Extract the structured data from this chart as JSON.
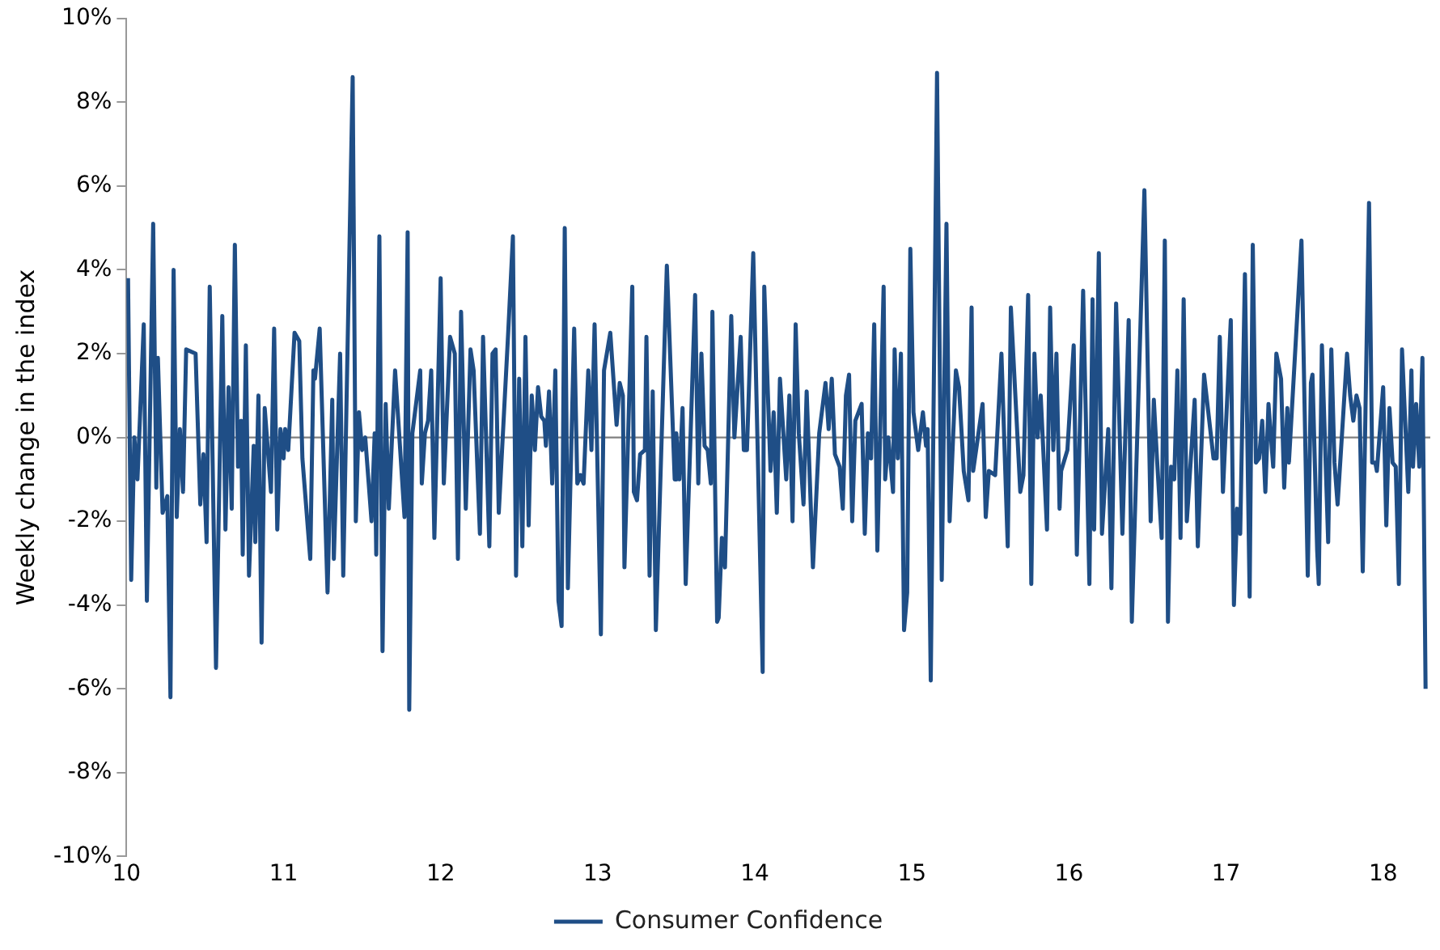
{
  "chart_data": {
    "type": "line",
    "ylabel": "Weekly change in the index",
    "legend": "bottom",
    "grid": false,
    "marker": "none",
    "line_style": "solid",
    "xlim": [
      10,
      18.3
    ],
    "xticks": [
      10,
      11,
      12,
      13,
      14,
      15,
      16,
      17,
      18
    ],
    "ylim": [
      -10,
      10
    ],
    "yticks": [
      {
        "value": -10,
        "label": "-10%"
      },
      {
        "value": -8,
        "label": "-8%"
      },
      {
        "value": -6,
        "label": "-6%"
      },
      {
        "value": -4,
        "label": "-4%"
      },
      {
        "value": -2,
        "label": "-2%"
      },
      {
        "value": 0,
        "label": "0%"
      },
      {
        "value": 2,
        "label": "2%"
      },
      {
        "value": 4,
        "label": "4%"
      },
      {
        "value": 6,
        "label": "6%"
      },
      {
        "value": 8,
        "label": "8%"
      },
      {
        "value": 10,
        "label": "10%"
      }
    ],
    "ref_lines": [
      {
        "axis": "y",
        "value": 0,
        "color": "#808080"
      }
    ],
    "series": [
      {
        "name": "Consumer Confidence",
        "color": "#1f4e86",
        "x": [
          10.01,
          10.03,
          10.05,
          10.07,
          10.11,
          10.13,
          10.17,
          10.19,
          10.2,
          10.23,
          10.26,
          10.28,
          10.3,
          10.32,
          10.34,
          10.36,
          10.38,
          10.44,
          10.47,
          10.49,
          10.51,
          10.53,
          10.57,
          10.61,
          10.63,
          10.65,
          10.67,
          10.69,
          10.71,
          10.73,
          10.74,
          10.76,
          10.78,
          10.81,
          10.82,
          10.84,
          10.86,
          10.88,
          10.92,
          10.94,
          10.96,
          10.98,
          11.0,
          11.01,
          11.03,
          11.07,
          11.1,
          11.12,
          11.17,
          11.19,
          11.2,
          11.23,
          11.28,
          11.31,
          11.32,
          11.36,
          11.38,
          11.44,
          11.46,
          11.48,
          11.5,
          11.52,
          11.56,
          11.58,
          11.59,
          11.61,
          11.63,
          11.65,
          11.67,
          11.71,
          11.77,
          11.79,
          11.8,
          11.82,
          11.87,
          11.88,
          11.9,
          11.92,
          11.94,
          11.96,
          12.0,
          12.02,
          12.06,
          12.09,
          12.11,
          12.13,
          12.16,
          12.19,
          12.21,
          12.25,
          12.27,
          12.31,
          12.33,
          12.35,
          12.37,
          12.43,
          12.46,
          12.48,
          12.5,
          12.52,
          12.54,
          12.56,
          12.58,
          12.6,
          12.62,
          12.64,
          12.66,
          12.67,
          12.69,
          12.71,
          12.73,
          12.75,
          12.77,
          12.79,
          12.81,
          12.85,
          12.87,
          12.89,
          12.91,
          12.94,
          12.96,
          12.98,
          13.02,
          13.04,
          13.08,
          13.12,
          13.14,
          13.16,
          13.17,
          13.22,
          13.23,
          13.25,
          13.27,
          13.3,
          13.31,
          13.33,
          13.35,
          13.37,
          13.44,
          13.49,
          13.5,
          13.52,
          13.54,
          13.56,
          13.62,
          13.64,
          13.66,
          13.68,
          13.7,
          13.72,
          13.73,
          13.76,
          13.77,
          13.79,
          13.81,
          13.85,
          13.87,
          13.91,
          13.93,
          13.95,
          13.99,
          14.05,
          14.06,
          14.1,
          14.12,
          14.14,
          14.16,
          14.2,
          14.22,
          14.24,
          14.26,
          14.28,
          14.31,
          14.33,
          14.37,
          14.41,
          14.45,
          14.47,
          14.49,
          14.51,
          14.54,
          14.56,
          14.58,
          14.6,
          14.62,
          14.64,
          14.68,
          14.7,
          14.72,
          14.74,
          14.76,
          14.78,
          14.82,
          14.83,
          14.85,
          14.88,
          14.89,
          14.91,
          14.93,
          14.95,
          14.97,
          14.99,
          15.01,
          15.04,
          15.07,
          15.09,
          15.1,
          15.12,
          15.16,
          15.19,
          15.22,
          15.24,
          15.28,
          15.3,
          15.33,
          15.36,
          15.38,
          15.39,
          15.45,
          15.47,
          15.49,
          15.53,
          15.57,
          15.61,
          15.63,
          15.69,
          15.71,
          15.74,
          15.76,
          15.78,
          15.8,
          15.82,
          15.86,
          15.88,
          15.9,
          15.92,
          15.94,
          15.95,
          15.99,
          16.03,
          16.05,
          16.09,
          16.13,
          16.15,
          16.16,
          16.19,
          16.21,
          16.25,
          16.27,
          16.3,
          16.34,
          16.38,
          16.4,
          16.48,
          16.52,
          16.54,
          16.56,
          16.59,
          16.61,
          16.63,
          16.65,
          16.67,
          16.69,
          16.71,
          16.73,
          16.75,
          16.8,
          16.82,
          16.86,
          16.92,
          16.94,
          16.96,
          16.98,
          17.03,
          17.05,
          17.07,
          17.09,
          17.12,
          17.15,
          17.17,
          17.19,
          17.21,
          17.23,
          17.25,
          17.27,
          17.3,
          17.32,
          17.35,
          17.37,
          17.39,
          17.4,
          17.48,
          17.52,
          17.54,
          17.55,
          17.58,
          17.59,
          17.61,
          17.65,
          17.67,
          17.69,
          17.71,
          17.77,
          17.79,
          17.81,
          17.83,
          17.85,
          17.87,
          17.91,
          17.93,
          17.95,
          17.96,
          18.0,
          18.02,
          18.04,
          18.06,
          18.08,
          18.1,
          18.12,
          18.16,
          18.18,
          18.19,
          18.21,
          18.23,
          18.25,
          18.27
        ],
        "values": [
          3.8,
          -3.4,
          0,
          -1.0,
          2.7,
          -3.9,
          5.1,
          -1.2,
          1.9,
          -1.8,
          -1.4,
          -6.2,
          4.0,
          -1.9,
          0.2,
          -1.3,
          2.1,
          2.0,
          -1.6,
          -0.4,
          -2.5,
          3.6,
          -5.5,
          2.9,
          -2.2,
          1.2,
          -1.7,
          4.6,
          -0.7,
          0.4,
          -2.8,
          2.2,
          -3.3,
          -0.2,
          -2.5,
          1.0,
          -4.9,
          0.7,
          -1.3,
          2.6,
          -2.2,
          0.2,
          -0.5,
          0.2,
          -0.3,
          2.5,
          2.3,
          -0.5,
          -2.9,
          1.6,
          1.4,
          2.6,
          -3.7,
          0.9,
          -2.9,
          2.0,
          -3.3,
          8.6,
          -2.0,
          0.6,
          -0.3,
          0.0,
          -2.0,
          0.1,
          -2.8,
          4.8,
          -5.1,
          0.8,
          -1.7,
          1.6,
          -1.9,
          4.9,
          -6.5,
          0.1,
          1.6,
          -1.1,
          0.1,
          0.4,
          1.6,
          -2.4,
          3.8,
          -1.1,
          2.4,
          2.0,
          -2.9,
          3.0,
          -1.7,
          2.1,
          1.6,
          -2.3,
          2.4,
          -2.6,
          2.0,
          2.1,
          -1.8,
          2.5,
          4.8,
          -3.3,
          1.4,
          -2.6,
          2.4,
          -2.1,
          1.0,
          -0.3,
          1.2,
          0.5,
          0.4,
          -0.2,
          1.1,
          -1.1,
          1.6,
          -3.9,
          -4.5,
          5.0,
          -3.6,
          2.6,
          -1.1,
          -0.9,
          -1.1,
          1.6,
          -0.3,
          2.7,
          -4.7,
          1.6,
          2.5,
          0.3,
          1.3,
          1.0,
          -3.1,
          3.6,
          -1.3,
          -1.5,
          -0.4,
          -0.3,
          2.4,
          -3.3,
          1.1,
          -4.6,
          4.1,
          -1.0,
          0.1,
          -1.0,
          0.7,
          -3.5,
          3.4,
          -1.1,
          2.0,
          -0.2,
          -0.3,
          -1.1,
          3.0,
          -4.4,
          -4.3,
          -2.4,
          -3.1,
          2.9,
          0.0,
          2.4,
          -0.3,
          -0.3,
          4.4,
          -5.6,
          3.6,
          -0.8,
          0.6,
          -1.8,
          1.4,
          -1.0,
          1.0,
          -2.0,
          2.7,
          0.1,
          -1.6,
          1.1,
          -3.1,
          0.1,
          1.3,
          0.2,
          1.4,
          -0.4,
          -0.7,
          -1.7,
          1.0,
          1.5,
          -2.0,
          0.4,
          0.8,
          -2.3,
          0.1,
          -0.5,
          2.7,
          -2.7,
          3.6,
          -1.0,
          0.0,
          -1.3,
          2.1,
          -0.5,
          2.0,
          -4.6,
          -3.7,
          4.5,
          0.6,
          -0.3,
          0.6,
          -0.2,
          0.2,
          -5.8,
          8.7,
          -3.4,
          5.1,
          -2.0,
          1.6,
          1.2,
          -0.8,
          -1.5,
          3.1,
          -0.8,
          0.8,
          -1.9,
          -0.8,
          -0.9,
          2.0,
          -2.6,
          3.1,
          -1.3,
          -0.9,
          3.4,
          -3.5,
          2.0,
          0.0,
          1.0,
          -2.2,
          3.1,
          -0.3,
          2.0,
          -1.7,
          -0.8,
          -0.3,
          2.2,
          -2.8,
          3.5,
          -3.5,
          3.3,
          -2.2,
          4.4,
          -2.3,
          0.2,
          -3.6,
          3.2,
          -2.3,
          2.8,
          -4.4,
          5.9,
          -2.0,
          0.9,
          -0.5,
          -2.4,
          4.7,
          -4.4,
          -0.7,
          -1.0,
          1.6,
          -2.4,
          3.3,
          -2.0,
          0.9,
          -2.6,
          1.5,
          -0.5,
          -0.5,
          2.4,
          -1.3,
          2.8,
          -4.0,
          -1.7,
          -2.3,
          3.9,
          -3.8,
          4.6,
          -0.6,
          -0.5,
          0.4,
          -1.3,
          0.8,
          -0.7,
          2.0,
          1.4,
          -1.2,
          0.7,
          -0.6,
          4.7,
          -3.3,
          1.3,
          1.5,
          -2.7,
          -3.5,
          2.2,
          -2.5,
          2.1,
          -0.6,
          -1.6,
          2.0,
          1.0,
          0.4,
          1.0,
          0.7,
          -3.2,
          5.6,
          -0.6,
          -0.6,
          -0.8,
          1.2,
          -2.1,
          0.7,
          -0.6,
          -0.7,
          -3.5,
          2.1,
          -1.3,
          1.6,
          -0.7,
          0.8,
          -0.7,
          1.9,
          -6.0
        ]
      }
    ]
  }
}
